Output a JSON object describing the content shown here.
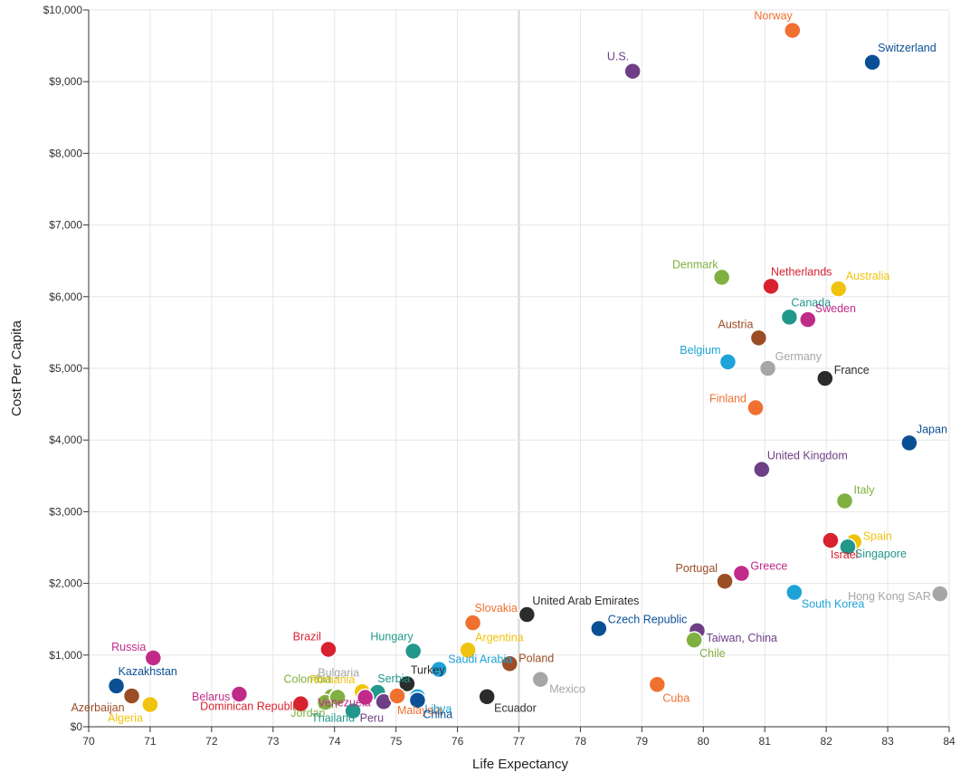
{
  "chart_data": {
    "type": "scatter",
    "title": "",
    "xlabel": "Life Expectancy",
    "ylabel": "Cost Per Capita",
    "xlim": [
      70,
      84
    ],
    "ylim": [
      0,
      10000
    ],
    "x_ticks": [
      70,
      71,
      72,
      73,
      74,
      75,
      76,
      77,
      78,
      79,
      80,
      81,
      82,
      83,
      84
    ],
    "y_ticks": [
      0,
      1000,
      2000,
      3000,
      4000,
      5000,
      6000,
      7000,
      8000,
      9000,
      10000
    ],
    "x_tick_labels": [
      "70",
      "71",
      "72",
      "73",
      "74",
      "75",
      "76",
      "77",
      "78",
      "79",
      "80",
      "81",
      "82",
      "83",
      "84"
    ],
    "y_tick_labels": [
      "$0",
      "$1,000",
      "$2,000",
      "$3,000",
      "$4,000",
      "$5,000",
      "$6,000",
      "$7,000",
      "$8,000",
      "$9,000",
      "$10,000"
    ],
    "grid": true,
    "legend": "none",
    "points": [
      {
        "label": "Norway",
        "x": 81.45,
        "y": 9715,
        "color": "#f07030",
        "anchor": "end",
        "dx": 0,
        "dy": -12
      },
      {
        "label": "Switzerland",
        "x": 82.75,
        "y": 9270,
        "color": "#0b4f95",
        "anchor": "start",
        "dx": 6,
        "dy": -12
      },
      {
        "label": "U.S.",
        "x": 78.85,
        "y": 9145,
        "color": "#6e3f86",
        "anchor": "end",
        "dx": -4,
        "dy": -12
      },
      {
        "label": "Denmark",
        "x": 80.3,
        "y": 6270,
        "color": "#80b040",
        "anchor": "end",
        "dx": -4,
        "dy": -10
      },
      {
        "label": "Netherlands",
        "x": 81.1,
        "y": 6145,
        "color": "#d8222f",
        "anchor": "start",
        "dx": 0,
        "dy": -12
      },
      {
        "label": "Australia",
        "x": 82.2,
        "y": 6110,
        "color": "#f0c30f",
        "anchor": "start",
        "dx": 8,
        "dy": -10
      },
      {
        "label": "Canada",
        "x": 81.4,
        "y": 5715,
        "color": "#22978c",
        "anchor": "start",
        "dx": 2,
        "dy": -12
      },
      {
        "label": "Sweden",
        "x": 81.7,
        "y": 5680,
        "color": "#c02b8a",
        "anchor": "start",
        "dx": 8,
        "dy": -8
      },
      {
        "label": "Austria",
        "x": 80.9,
        "y": 5425,
        "color": "#9b4d25",
        "anchor": "end",
        "dx": -6,
        "dy": -11
      },
      {
        "label": "Belgium",
        "x": 80.4,
        "y": 5090,
        "color": "#1ea3d8",
        "anchor": "end",
        "dx": -8,
        "dy": -9
      },
      {
        "label": "Germany",
        "x": 81.05,
        "y": 5000,
        "color": "#a6a6a6",
        "anchor": "start",
        "dx": 8,
        "dy": -9
      },
      {
        "label": "France",
        "x": 81.98,
        "y": 4860,
        "color": "#2c2c2c",
        "anchor": "start",
        "dx": 10,
        "dy": -5
      },
      {
        "label": "Finland",
        "x": 80.85,
        "y": 4450,
        "color": "#f07030",
        "anchor": "end",
        "dx": -10,
        "dy": -6
      },
      {
        "label": "Japan",
        "x": 83.35,
        "y": 3960,
        "color": "#0b4f95",
        "anchor": "start",
        "dx": 8,
        "dy": -11
      },
      {
        "label": "United Kingdom",
        "x": 80.95,
        "y": 3590,
        "color": "#6e3f86",
        "anchor": "start",
        "dx": 6,
        "dy": -11
      },
      {
        "label": "Italy",
        "x": 82.3,
        "y": 3150,
        "color": "#80b040",
        "anchor": "start",
        "dx": 10,
        "dy": -8
      },
      {
        "label": "Spain",
        "x": 82.45,
        "y": 2580,
        "color": "#f0c30f",
        "anchor": "start",
        "dx": 10,
        "dy": -2
      },
      {
        "label": "Israel",
        "x": 82.07,
        "y": 2600,
        "color": "#d8222f",
        "anchor": "start",
        "dx": 0,
        "dy": 20
      },
      {
        "label": "Singapore",
        "x": 82.35,
        "y": 2510,
        "color": "#22978c",
        "anchor": "start",
        "dx": 8,
        "dy": 12
      },
      {
        "label": "Portugal",
        "x": 80.35,
        "y": 2030,
        "color": "#9b4d25",
        "anchor": "end",
        "dx": -8,
        "dy": -10
      },
      {
        "label": "Greece",
        "x": 80.62,
        "y": 2140,
        "color": "#c02b8a",
        "anchor": "start",
        "dx": 10,
        "dy": -4
      },
      {
        "label": "South Korea",
        "x": 81.48,
        "y": 1875,
        "color": "#1ea3d8",
        "anchor": "start",
        "dx": 8,
        "dy": 17
      },
      {
        "label": "Hong Kong SAR",
        "x": 83.85,
        "y": 1855,
        "color": "#a6a6a6",
        "anchor": "end",
        "dx": -10,
        "dy": 7
      },
      {
        "label": "United Arab Emirates",
        "x": 77.13,
        "y": 1565,
        "color": "#2c2c2c",
        "anchor": "start",
        "dx": 6,
        "dy": -11
      },
      {
        "label": "Slovakia",
        "x": 76.25,
        "y": 1450,
        "color": "#f07030",
        "anchor": "start",
        "dx": 2,
        "dy": -12
      },
      {
        "label": "Czech Republic",
        "x": 78.3,
        "y": 1370,
        "color": "#0b4f95",
        "anchor": "start",
        "dx": 10,
        "dy": -6
      },
      {
        "label": "Taiwan, China",
        "x": 79.9,
        "y": 1340,
        "color": "#6e3f86",
        "anchor": "start",
        "dx": 10,
        "dy": 12
      },
      {
        "label": "Chile",
        "x": 79.85,
        "y": 1210,
        "color": "#80b040",
        "anchor": "start",
        "dx": 6,
        "dy": 19
      },
      {
        "label": "Russia",
        "x": 71.05,
        "y": 960,
        "color": "#c02b8a",
        "anchor": "end",
        "dx": -8,
        "dy": -8
      },
      {
        "label": "Brazil",
        "x": 73.9,
        "y": 1080,
        "color": "#d8222f",
        "anchor": "end",
        "dx": -8,
        "dy": -10
      },
      {
        "label": "Hungary",
        "x": 75.28,
        "y": 1055,
        "color": "#22978c",
        "anchor": "end",
        "dx": 0,
        "dy": -12
      },
      {
        "label": "Argentina",
        "x": 76.17,
        "y": 1070,
        "color": "#f0c30f",
        "anchor": "start",
        "dx": 8,
        "dy": -10
      },
      {
        "label": "Saudi Arabia",
        "x": 75.7,
        "y": 800,
        "color": "#1ea3d8",
        "anchor": "start",
        "dx": 10,
        "dy": -7
      },
      {
        "label": "Poland",
        "x": 76.85,
        "y": 880,
        "color": "#9b4d25",
        "anchor": "start",
        "dx": 10,
        "dy": -2
      },
      {
        "label": "Turkey",
        "x": 75.18,
        "y": 600,
        "color": "#2c2c2c",
        "anchor": "start",
        "dx": 4,
        "dy": -11
      },
      {
        "label": "Mexico",
        "x": 77.35,
        "y": 660,
        "color": "#a6a6a6",
        "anchor": "start",
        "dx": 10,
        "dy": 15
      },
      {
        "label": "Cuba",
        "x": 79.25,
        "y": 590,
        "color": "#f07030",
        "anchor": "start",
        "dx": 6,
        "dy": 19
      },
      {
        "label": "Ecuador",
        "x": 76.48,
        "y": 420,
        "color": "#2c2c2c",
        "anchor": "start",
        "dx": 8,
        "dy": 17
      },
      {
        "label": "Kazakhstan",
        "x": 70.45,
        "y": 570,
        "color": "#0b4f95",
        "anchor": "start",
        "dx": 2,
        "dy": -12
      },
      {
        "label": "Azerbaijan",
        "x": 70.7,
        "y": 430,
        "color": "#9b4d25",
        "anchor": "end",
        "dx": -8,
        "dy": 17
      },
      {
        "label": "Algeria",
        "x": 71.0,
        "y": 310,
        "color": "#f0c30f",
        "anchor": "end",
        "dx": -8,
        "dy": 19
      },
      {
        "label": "Belarus",
        "x": 72.45,
        "y": 455,
        "color": "#c02b8a",
        "anchor": "end",
        "dx": -10,
        "dy": 7
      },
      {
        "label": "Dominican Republic",
        "x": 73.45,
        "y": 320,
        "color": "#d8222f",
        "anchor": "end",
        "dx": 0,
        "dy": 7
      },
      {
        "label": "Colombia",
        "x": 73.95,
        "y": 420,
        "color": "#80b040",
        "anchor": "end",
        "dx": 0,
        "dy": -15
      },
      {
        "label": "Bulgaria",
        "x": 74.05,
        "y": 420,
        "color": "#a6a6a6",
        "anchor": "end",
        "dx": 24,
        "dy": -22
      },
      {
        "label": "Romania",
        "x": 74.45,
        "y": 490,
        "color": "#f0c30f",
        "anchor": "end",
        "dx": -8,
        "dy": -9
      },
      {
        "label": "Serbia",
        "x": 74.7,
        "y": 480,
        "color": "#22978c",
        "anchor": "start",
        "dx": 0,
        "dy": -11
      },
      {
        "label": "Jordan",
        "x": 73.85,
        "y": 340,
        "color": "#80b040",
        "anchor": "end",
        "dx": 0,
        "dy": 16
      },
      {
        "label": "Iran",
        "x": 74.05,
        "y": 410,
        "color": "#80b040",
        "anchor": "end",
        "dx": 0,
        "dy": 12
      },
      {
        "label": "Venezuela",
        "x": 74.5,
        "y": 410,
        "color": "#c02b8a",
        "anchor": "end",
        "dx": 6,
        "dy": 10
      },
      {
        "label": "Thailand",
        "x": 74.3,
        "y": 220,
        "color": "#22978c",
        "anchor": "end",
        "dx": 2,
        "dy": 12
      },
      {
        "label": "Peru",
        "x": 74.8,
        "y": 350,
        "color": "#6e3f86",
        "anchor": "end",
        "dx": 0,
        "dy": 22
      },
      {
        "label": "Malaysia",
        "x": 75.02,
        "y": 430,
        "color": "#f07030",
        "anchor": "start",
        "dx": 0,
        "dy": 20
      },
      {
        "label": "Libya",
        "x": 75.35,
        "y": 420,
        "color": "#1ea3d8",
        "anchor": "start",
        "dx": 8,
        "dy": 18
      },
      {
        "label": "China",
        "x": 75.35,
        "y": 370,
        "color": "#0b4f95",
        "anchor": "start",
        "dx": 6,
        "dy": 20
      }
    ]
  }
}
